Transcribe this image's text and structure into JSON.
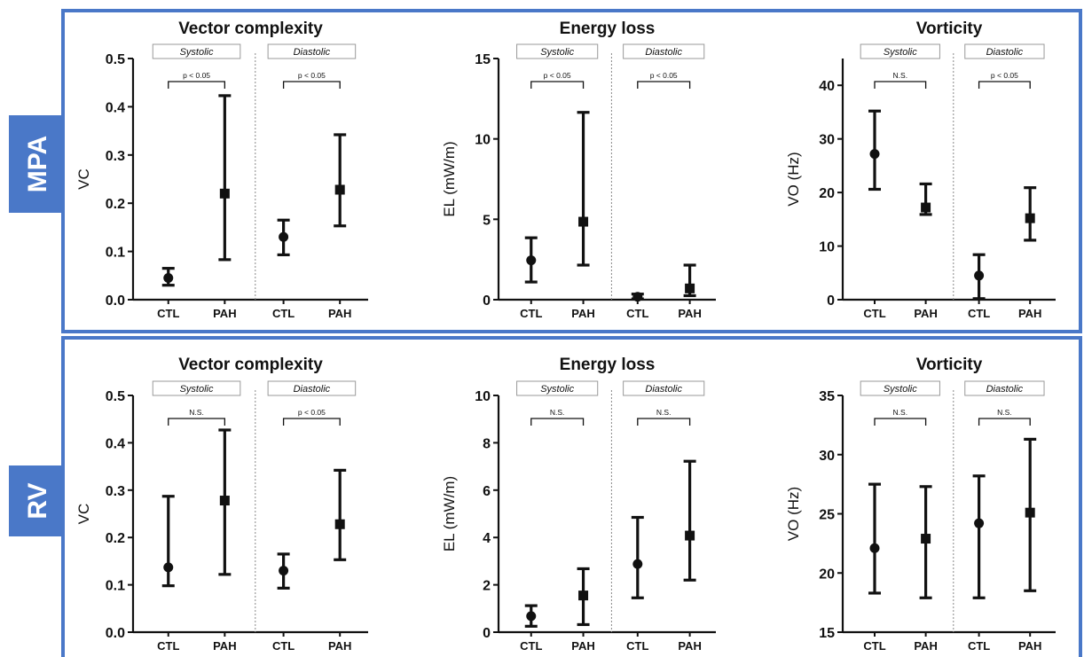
{
  "rows": [
    {
      "label": "MPA"
    },
    {
      "label": "RV"
    }
  ],
  "chart_data": [
    {
      "row": 0,
      "col": 0,
      "type": "scatter",
      "title": "Vector complexity",
      "ylabel": "VC",
      "ylim": [
        0,
        0.5
      ],
      "yticks": [
        0.0,
        0.1,
        0.2,
        0.3,
        0.4,
        0.5
      ],
      "categories": [
        "CTL",
        "PAH",
        "CTL",
        "PAH"
      ],
      "groups": [
        {
          "name": "Systolic",
          "significance": "p < 0.05"
        },
        {
          "name": "Diastolic",
          "significance": "p < 0.05"
        }
      ],
      "points": [
        {
          "x": "CTL",
          "group": "Systolic",
          "y": 0.045,
          "low": 0.03,
          "high": 0.065,
          "marker": "circle"
        },
        {
          "x": "PAH",
          "group": "Systolic",
          "y": 0.22,
          "low": 0.083,
          "high": 0.423,
          "marker": "square"
        },
        {
          "x": "CTL",
          "group": "Diastolic",
          "y": 0.13,
          "low": 0.093,
          "high": 0.165,
          "marker": "circle"
        },
        {
          "x": "PAH",
          "group": "Diastolic",
          "y": 0.228,
          "low": 0.153,
          "high": 0.342,
          "marker": "square"
        }
      ]
    },
    {
      "row": 0,
      "col": 1,
      "type": "scatter",
      "title": "Energy loss",
      "ylabel": "EL (mW/m)",
      "ylim": [
        0,
        15
      ],
      "yticks": [
        0,
        5,
        10,
        15
      ],
      "categories": [
        "CTL",
        "PAH",
        "CTL",
        "PAH"
      ],
      "groups": [
        {
          "name": "Systolic",
          "significance": "p < 0.05"
        },
        {
          "name": "Diastolic",
          "significance": "p < 0.05"
        }
      ],
      "points": [
        {
          "x": "CTL",
          "group": "Systolic",
          "y": 2.45,
          "low": 1.1,
          "high": 3.85,
          "marker": "circle"
        },
        {
          "x": "PAH",
          "group": "Systolic",
          "y": 4.85,
          "low": 2.15,
          "high": 11.65,
          "marker": "square"
        },
        {
          "x": "CTL",
          "group": "Diastolic",
          "y": 0.18,
          "low": 0.05,
          "high": 0.35,
          "marker": "circle"
        },
        {
          "x": "PAH",
          "group": "Diastolic",
          "y": 0.7,
          "low": 0.25,
          "high": 2.15,
          "marker": "square"
        }
      ]
    },
    {
      "row": 0,
      "col": 2,
      "type": "scatter",
      "title": "Vorticity",
      "ylabel": "VO (Hz)",
      "ylim": [
        0,
        45
      ],
      "yticks": [
        0,
        10,
        20,
        30,
        40
      ],
      "categories": [
        "CTL",
        "PAH",
        "CTL",
        "PAH"
      ],
      "groups": [
        {
          "name": "Systolic",
          "significance": "N.S."
        },
        {
          "name": "Diastolic",
          "significance": "p < 0.05"
        }
      ],
      "points": [
        {
          "x": "CTL",
          "group": "Systolic",
          "y": 27.2,
          "low": 20.6,
          "high": 35.2,
          "marker": "circle"
        },
        {
          "x": "PAH",
          "group": "Systolic",
          "y": 17.2,
          "low": 15.9,
          "high": 21.6,
          "marker": "square"
        },
        {
          "x": "CTL",
          "group": "Diastolic",
          "y": 4.5,
          "low": 0.2,
          "high": 8.4,
          "marker": "circle"
        },
        {
          "x": "PAH",
          "group": "Diastolic",
          "y": 15.2,
          "low": 11.1,
          "high": 20.9,
          "marker": "square"
        }
      ]
    },
    {
      "row": 1,
      "col": 0,
      "type": "scatter",
      "title": "Vector complexity",
      "ylabel": "VC",
      "ylim": [
        0,
        0.5
      ],
      "yticks": [
        0.0,
        0.1,
        0.2,
        0.3,
        0.4,
        0.5
      ],
      "categories": [
        "CTL",
        "PAH",
        "CTL",
        "PAH"
      ],
      "groups": [
        {
          "name": "Systolic",
          "significance": "N.S."
        },
        {
          "name": "Diastolic",
          "significance": "p < 0.05"
        }
      ],
      "points": [
        {
          "x": "CTL",
          "group": "Systolic",
          "y": 0.137,
          "low": 0.098,
          "high": 0.287,
          "marker": "circle"
        },
        {
          "x": "PAH",
          "group": "Systolic",
          "y": 0.278,
          "low": 0.122,
          "high": 0.427,
          "marker": "square"
        },
        {
          "x": "CTL",
          "group": "Diastolic",
          "y": 0.13,
          "low": 0.093,
          "high": 0.165,
          "marker": "circle"
        },
        {
          "x": "PAH",
          "group": "Diastolic",
          "y": 0.228,
          "low": 0.153,
          "high": 0.342,
          "marker": "square"
        }
      ]
    },
    {
      "row": 1,
      "col": 1,
      "type": "scatter",
      "title": "Energy loss",
      "ylabel": "EL (mW/m)",
      "ylim": [
        0,
        10
      ],
      "yticks": [
        0,
        2,
        4,
        6,
        8,
        10
      ],
      "categories": [
        "CTL",
        "PAH",
        "CTL",
        "PAH"
      ],
      "groups": [
        {
          "name": "Systolic",
          "significance": "N.S."
        },
        {
          "name": "Diastolic",
          "significance": "N.S."
        }
      ],
      "points": [
        {
          "x": "CTL",
          "group": "Systolic",
          "y": 0.68,
          "low": 0.25,
          "high": 1.12,
          "marker": "circle"
        },
        {
          "x": "PAH",
          "group": "Systolic",
          "y": 1.55,
          "low": 0.32,
          "high": 2.68,
          "marker": "square"
        },
        {
          "x": "CTL",
          "group": "Diastolic",
          "y": 2.88,
          "low": 1.45,
          "high": 4.85,
          "marker": "circle"
        },
        {
          "x": "PAH",
          "group": "Diastolic",
          "y": 4.08,
          "low": 2.2,
          "high": 7.22,
          "marker": "square"
        }
      ]
    },
    {
      "row": 1,
      "col": 2,
      "type": "scatter",
      "title": "Vorticity",
      "ylabel": "VO (Hz)",
      "ylim": [
        15,
        35
      ],
      "yticks": [
        15,
        20,
        25,
        30,
        35
      ],
      "categories": [
        "CTL",
        "PAH",
        "CTL",
        "PAH"
      ],
      "groups": [
        {
          "name": "Systolic",
          "significance": "N.S."
        },
        {
          "name": "Diastolic",
          "significance": "N.S."
        }
      ],
      "points": [
        {
          "x": "CTL",
          "group": "Systolic",
          "y": 22.1,
          "low": 18.3,
          "high": 27.5,
          "marker": "circle"
        },
        {
          "x": "PAH",
          "group": "Systolic",
          "y": 22.9,
          "low": 17.9,
          "high": 27.3,
          "marker": "square"
        },
        {
          "x": "CTL",
          "group": "Diastolic",
          "y": 24.2,
          "low": 17.9,
          "high": 28.2,
          "marker": "circle"
        },
        {
          "x": "PAH",
          "group": "Diastolic",
          "y": 25.1,
          "low": 18.5,
          "high": 31.3,
          "marker": "square"
        }
      ]
    }
  ]
}
